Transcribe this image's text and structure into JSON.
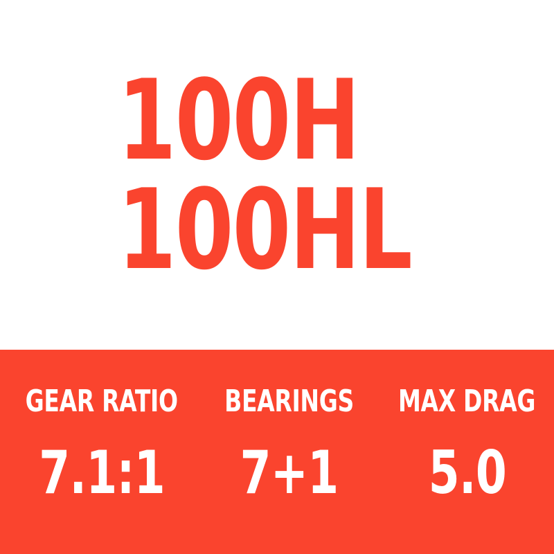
{
  "colors": {
    "accent": "#fa442e",
    "on_accent": "#ffffff",
    "background": "#ffffff"
  },
  "title": {
    "line1": "100H",
    "line2": "100HL"
  },
  "specs": [
    {
      "label": "GEAR RATIO",
      "value": "7.1:1"
    },
    {
      "label": "BEARINGS",
      "value": "7+1"
    },
    {
      "label": "MAX DRAG",
      "value": "5.0"
    }
  ]
}
